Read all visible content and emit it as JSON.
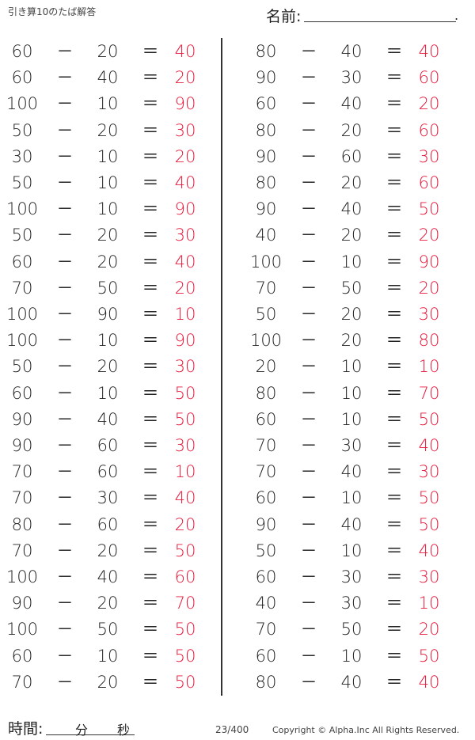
{
  "header": {
    "title": "引き算10のたば解答",
    "name_label": "名前:",
    "name_end": "."
  },
  "footer": {
    "time_label": "時間:",
    "minutes": "分",
    "seconds": "秒",
    "page": "23/400",
    "copyright": "Copyright ©  Alpha.Inc All Rights Reserved."
  },
  "operator": "－",
  "equals": "＝",
  "colors": {
    "answer": "#e8173a",
    "text": "#222222"
  },
  "left": [
    [
      60,
      20,
      40
    ],
    [
      60,
      40,
      20
    ],
    [
      100,
      10,
      90
    ],
    [
      50,
      20,
      30
    ],
    [
      30,
      10,
      20
    ],
    [
      50,
      10,
      40
    ],
    [
      100,
      10,
      90
    ],
    [
      50,
      20,
      30
    ],
    [
      60,
      20,
      40
    ],
    [
      70,
      50,
      20
    ],
    [
      100,
      90,
      10
    ],
    [
      100,
      10,
      90
    ],
    [
      50,
      20,
      30
    ],
    [
      60,
      10,
      50
    ],
    [
      90,
      40,
      50
    ],
    [
      90,
      60,
      30
    ],
    [
      70,
      60,
      10
    ],
    [
      70,
      30,
      40
    ],
    [
      80,
      60,
      20
    ],
    [
      70,
      20,
      50
    ],
    [
      100,
      40,
      60
    ],
    [
      90,
      20,
      70
    ],
    [
      100,
      50,
      50
    ],
    [
      60,
      10,
      50
    ],
    [
      70,
      20,
      50
    ]
  ],
  "right": [
    [
      80,
      40,
      40
    ],
    [
      90,
      30,
      60
    ],
    [
      60,
      40,
      20
    ],
    [
      80,
      20,
      60
    ],
    [
      90,
      60,
      30
    ],
    [
      80,
      20,
      60
    ],
    [
      90,
      40,
      50
    ],
    [
      40,
      20,
      20
    ],
    [
      100,
      10,
      90
    ],
    [
      70,
      50,
      20
    ],
    [
      50,
      20,
      30
    ],
    [
      100,
      20,
      80
    ],
    [
      20,
      10,
      10
    ],
    [
      80,
      10,
      70
    ],
    [
      60,
      10,
      50
    ],
    [
      70,
      30,
      40
    ],
    [
      70,
      40,
      30
    ],
    [
      60,
      10,
      50
    ],
    [
      90,
      40,
      50
    ],
    [
      50,
      10,
      40
    ],
    [
      60,
      30,
      30
    ],
    [
      40,
      30,
      10
    ],
    [
      70,
      50,
      20
    ],
    [
      60,
      10,
      50
    ],
    [
      80,
      40,
      40
    ]
  ]
}
